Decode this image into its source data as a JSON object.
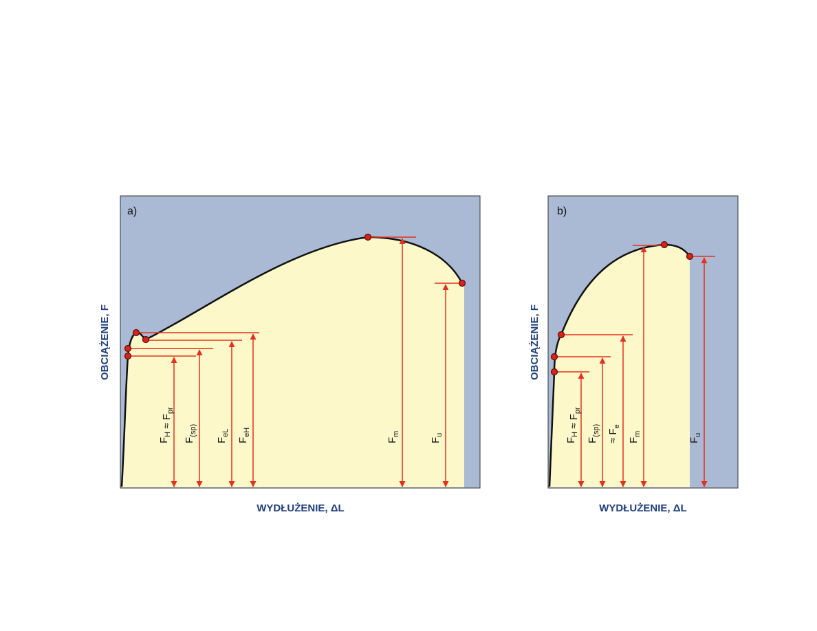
{
  "panels": [
    {
      "tag": "a)",
      "y_axis_label": "OBCIĄŻENIE, F",
      "x_axis_label": "WYDŁUŻENIE, ΔL",
      "force_labels": [
        [
          {
            "text": "F"
          },
          {
            "sub": "H"
          },
          {
            "text": " ≈ F"
          },
          {
            "sub": "pr"
          }
        ],
        [
          {
            "text": "F"
          },
          {
            "sub": "(sp)"
          }
        ],
        [
          {
            "text": "F"
          },
          {
            "sub": "eL"
          }
        ],
        [
          {
            "text": "F"
          },
          {
            "sub": "eH"
          }
        ],
        [
          {
            "text": "F"
          },
          {
            "sub": "m"
          }
        ],
        [
          {
            "text": "F"
          },
          {
            "sub": "u"
          }
        ]
      ]
    },
    {
      "tag": "b)",
      "y_axis_label": "OBCIĄŻENIE, F",
      "x_axis_label": "WYDŁUŻENIE, ΔL",
      "force_labels": [
        [
          {
            "text": "F"
          },
          {
            "sub": "H"
          },
          {
            "text": " ≈ F"
          },
          {
            "sub": "pr"
          }
        ],
        [
          {
            "text": "F"
          },
          {
            "sub": "(sp)"
          }
        ],
        [
          {
            "text": "≈ F"
          },
          {
            "sub": "e"
          }
        ],
        [
          {
            "text": "F"
          },
          {
            "sub": "m"
          }
        ],
        [
          {
            "text": "F"
          },
          {
            "sub": "u"
          }
        ]
      ]
    }
  ]
}
